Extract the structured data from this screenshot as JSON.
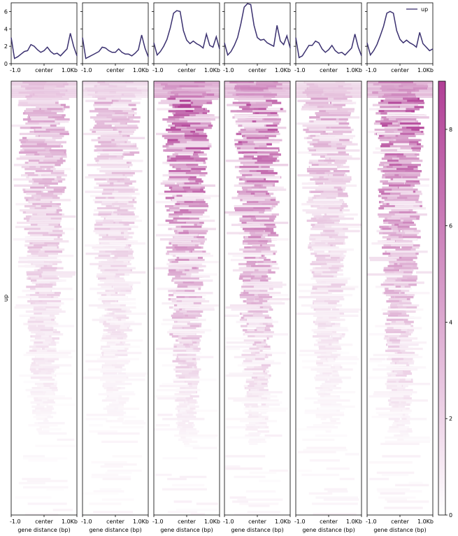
{
  "chart_data": {
    "type": "heatmap",
    "region_label": "up",
    "legend_label": "up",
    "profile": {
      "type": "line",
      "x": [
        -1000,
        -900,
        -800,
        -700,
        -600,
        -500,
        -400,
        -300,
        -200,
        -100,
        0,
        100,
        200,
        300,
        400,
        500,
        600,
        700,
        800,
        900,
        1000
      ],
      "ylim": [
        0,
        7
      ],
      "yticks": [
        0,
        2,
        4,
        6
      ],
      "ytick_labels": [
        "0",
        "2",
        "4",
        "6"
      ],
      "xtick_labels": [
        "-1.0",
        "center",
        "1.0Kb"
      ],
      "line_color": "#3b3170",
      "series": [
        {
          "values": [
            3.0,
            0.6,
            0.8,
            1.1,
            1.4,
            1.5,
            2.2,
            2.0,
            1.6,
            1.3,
            1.5,
            1.9,
            1.4,
            1.1,
            1.2,
            0.9,
            1.3,
            1.7,
            3.5,
            2.0,
            0.9
          ]
        },
        {
          "values": [
            3.0,
            0.6,
            0.8,
            1.0,
            1.2,
            1.4,
            1.9,
            1.8,
            1.5,
            1.3,
            1.3,
            1.7,
            1.3,
            1.1,
            1.1,
            0.9,
            1.2,
            1.6,
            3.3,
            1.8,
            0.8
          ]
        },
        {
          "values": [
            2.4,
            1.0,
            1.4,
            2.0,
            2.8,
            4.1,
            5.8,
            6.1,
            6.0,
            3.8,
            2.7,
            2.3,
            2.6,
            2.3,
            2.1,
            1.8,
            3.4,
            2.1,
            1.9,
            3.1,
            1.7
          ]
        },
        {
          "values": [
            2.4,
            1.0,
            1.4,
            2.1,
            3.0,
            4.6,
            6.5,
            6.9,
            6.8,
            4.4,
            3.0,
            2.7,
            2.8,
            2.4,
            2.2,
            2.0,
            4.4,
            2.6,
            2.2,
            3.2,
            1.8
          ]
        },
        {
          "values": [
            3.0,
            0.7,
            0.9,
            1.5,
            2.1,
            2.1,
            2.6,
            2.4,
            1.7,
            1.3,
            1.6,
            2.1,
            1.5,
            1.2,
            1.3,
            1.0,
            1.4,
            1.8,
            3.4,
            1.9,
            0.9
          ]
        },
        {
          "values": [
            2.4,
            1.0,
            1.5,
            2.2,
            3.2,
            4.3,
            5.8,
            6.0,
            5.8,
            3.8,
            2.8,
            2.4,
            2.7,
            2.4,
            2.2,
            1.9,
            3.6,
            2.3,
            1.9,
            1.5,
            1.7
          ]
        }
      ]
    },
    "heatmap": {
      "xtick_labels": [
        "-1.0",
        "center",
        "1.0Kb"
      ],
      "xlabel": "gene distance (bp)",
      "colormap": {
        "low": "#ffffff",
        "high": "#b13f96"
      },
      "colorbar": {
        "min": 0,
        "max": 9,
        "ticks": [
          0,
          2,
          4,
          6,
          8
        ],
        "tick_labels": [
          "0",
          "2",
          "4",
          "6",
          "8"
        ]
      },
      "panels": [
        {
          "peak_intensity": 0.55
        },
        {
          "peak_intensity": 0.45
        },
        {
          "peak_intensity": 1.0
        },
        {
          "peak_intensity": 1.0
        },
        {
          "peak_intensity": 0.5
        },
        {
          "peak_intensity": 0.95
        }
      ]
    }
  }
}
